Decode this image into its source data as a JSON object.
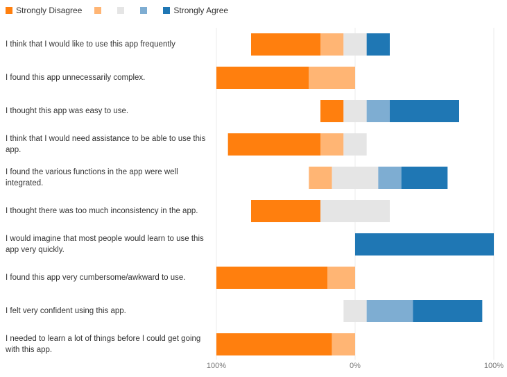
{
  "chart_data": {
    "type": "bar",
    "stacked": "diverging",
    "legend": {
      "placement": "top-left",
      "entries": [
        {
          "label": "Strongly Disagree",
          "color": "#ff7f0e"
        },
        {
          "label": "",
          "color": "#ffb574"
        },
        {
          "label": "",
          "color": "#e5e5e5"
        },
        {
          "label": "",
          "color": "#7eadd2"
        },
        {
          "label": "Strongly Agree",
          "color": "#1f77b4"
        }
      ]
    },
    "series": [
      {
        "name": "Strongly Disagree",
        "color": "#ff7f0e",
        "values": [
          30,
          40,
          10,
          40,
          0,
          30,
          0,
          48,
          0,
          50
        ]
      },
      {
        "name": "",
        "color": "#ffb574",
        "values": [
          10,
          20,
          0,
          10,
          10,
          0,
          0,
          12,
          0,
          10
        ]
      },
      {
        "name": "",
        "color": "#e5e5e5",
        "values": [
          10,
          0,
          10,
          10,
          20,
          30,
          0,
          0,
          10,
          0
        ]
      },
      {
        "name": "",
        "color": "#7eadd2",
        "values": [
          0,
          0,
          10,
          0,
          10,
          0,
          0,
          0,
          20,
          0
        ]
      },
      {
        "name": "Strongly Agree",
        "color": "#1f77b4",
        "values": [
          10,
          0,
          30,
          0,
          20,
          0,
          60,
          0,
          30,
          0
        ]
      }
    ],
    "categories": [
      "I think that I would like to use this app frequently",
      "I found this app unnecessarily complex.",
      "I thought this app was easy to use.",
      "I think that I would need assistance to be able to use this app.",
      "I found the various functions in the app were well integrated.",
      "I thought there was too much inconsistency in the app.",
      "I would imagine that most people would learn to use this app very quickly.",
      "I found this app very cumbersome/awkward to use.",
      "I felt very confident using this app.",
      "I needed to learn a lot of things before I could get going with this app."
    ],
    "x_ticks": [
      "100%",
      "0%",
      "100%"
    ],
    "xlim": [
      -60,
      60
    ],
    "grid": true
  }
}
